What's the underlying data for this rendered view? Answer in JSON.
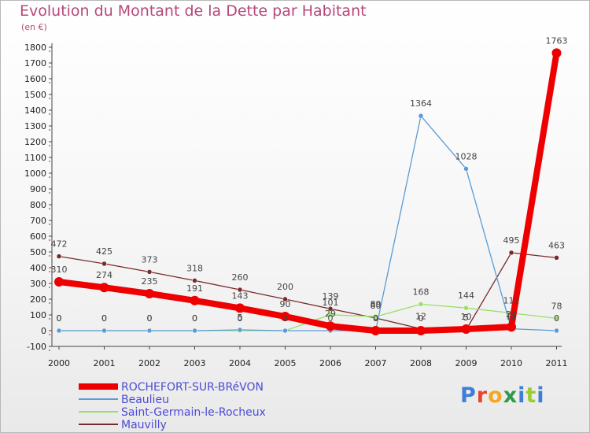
{
  "header": {
    "title": "Evolution du Montant de la Dette par Habitant",
    "unit": "(en €)"
  },
  "logo": {
    "text": "Proxiti",
    "letter_colors": [
      "#3d7fd6",
      "#e8432b",
      "#f5a623",
      "#2f9a4a",
      "#3d7fd6",
      "#9acd32",
      "#3d7fd6"
    ]
  },
  "chart_data": {
    "type": "line",
    "title": "Evolution du Montant de la Dette par Habitant",
    "ylabel": "(en €)",
    "xlabel": "",
    "x": [
      "2000",
      "2001",
      "2002",
      "2003",
      "2004",
      "2005",
      "2006",
      "2007",
      "2008",
      "2009",
      "2010",
      "2011"
    ],
    "ylim": [
      -100,
      1800
    ],
    "yticks": [
      -100,
      0,
      100,
      200,
      300,
      400,
      500,
      600,
      700,
      800,
      900,
      1000,
      1100,
      1200,
      1300,
      1400,
      1500,
      1600,
      1700,
      1800
    ],
    "grid": false,
    "legend_position": "bottom-left",
    "series": [
      {
        "name": "ROCHEFORT-SUR-BRéVON",
        "color": "#ee0000",
        "values": [
          310,
          274,
          235,
          191,
          143,
          90,
          29,
          0,
          0,
          10,
          24,
          1763
        ],
        "labels": [
          "310",
          "274",
          "235",
          "191",
          "143",
          "90",
          "29",
          "0",
          "0",
          "10",
          "24",
          "1763"
        ]
      },
      {
        "name": "Beaulieu",
        "color": "#5b9bd5",
        "values": [
          0,
          0,
          0,
          0,
          5,
          0,
          0,
          0,
          1364,
          1028,
          12,
          0
        ],
        "labels": [
          "0",
          "0",
          "0",
          "0",
          "5",
          "0",
          "0",
          "0",
          "1364",
          "1028",
          "12",
          "0"
        ]
      },
      {
        "name": "Saint-Germain-le-Rocheux",
        "color": "#99e066",
        "values": [
          0,
          0,
          0,
          0,
          0,
          0,
          101,
          89,
          168,
          144,
          112,
          78
        ],
        "labels": [
          "0",
          "0",
          "0",
          "0",
          "0",
          "0",
          "101",
          "89",
          "168",
          "144",
          "112",
          "78"
        ]
      },
      {
        "name": "Mauvilly",
        "color": "#7a2a2a",
        "values": [
          472,
          425,
          373,
          318,
          260,
          200,
          139,
          80,
          12,
          5,
          495,
          463
        ],
        "labels": [
          "472",
          "425",
          "373",
          "318",
          "260",
          "200",
          "139",
          "80",
          "12",
          "5",
          "495",
          "463"
        ]
      }
    ]
  }
}
